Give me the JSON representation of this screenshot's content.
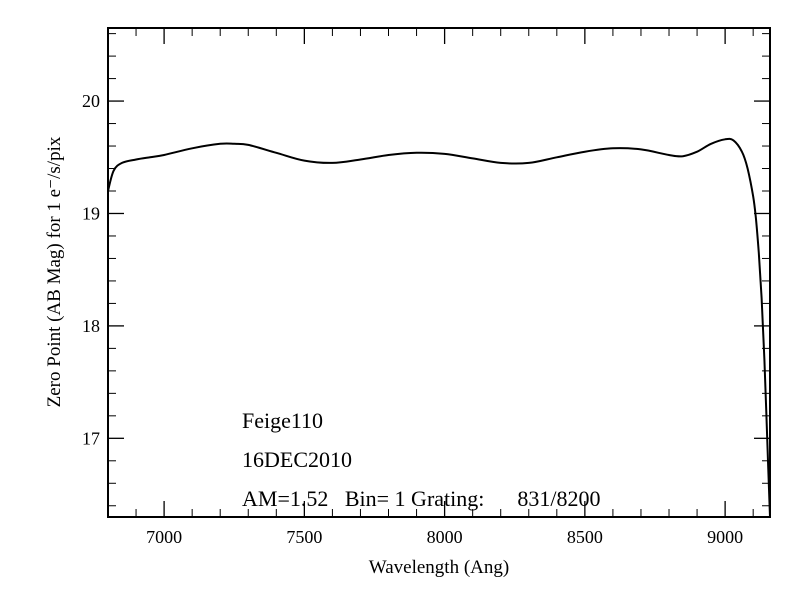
{
  "chart_data": {
    "type": "line",
    "title": "",
    "xlabel": "Wavelength (Ang)",
    "ylabel": "Zero Point (AB Mag) for 1 e⁻/s/pix",
    "xlim": [
      6800,
      9160
    ],
    "ylim": [
      16.3,
      20.65
    ],
    "xticks": [
      7000,
      7500,
      8000,
      8500,
      9000
    ],
    "yticks": [
      17,
      18,
      19,
      20
    ],
    "grid": false,
    "series": [
      {
        "color": "#000000",
        "x": [
          6800,
          6820,
          6850,
          6900,
          6950,
          7000,
          7100,
          7200,
          7250,
          7300,
          7400,
          7500,
          7600,
          7700,
          7800,
          7900,
          8000,
          8100,
          8200,
          8300,
          8400,
          8500,
          8600,
          8700,
          8800,
          8850,
          8900,
          8950,
          9000,
          9030,
          9060,
          9080,
          9100,
          9110,
          9120,
          9130,
          9140,
          9150,
          9160
        ],
        "y": [
          19.2,
          19.38,
          19.45,
          19.48,
          19.5,
          19.52,
          19.58,
          19.62,
          19.62,
          19.61,
          19.54,
          19.47,
          19.45,
          19.48,
          19.52,
          19.54,
          19.53,
          19.49,
          19.45,
          19.45,
          19.5,
          19.55,
          19.58,
          19.57,
          19.52,
          19.51,
          19.55,
          19.62,
          19.66,
          19.65,
          19.55,
          19.4,
          19.15,
          18.95,
          18.65,
          18.25,
          17.7,
          17.0,
          16.3
        ]
      }
    ]
  },
  "annotations": {
    "star": "Feige110",
    "date": "16DEC2010",
    "setup": "AM=1.52   Bin= 1 Grating:      831/8200"
  }
}
